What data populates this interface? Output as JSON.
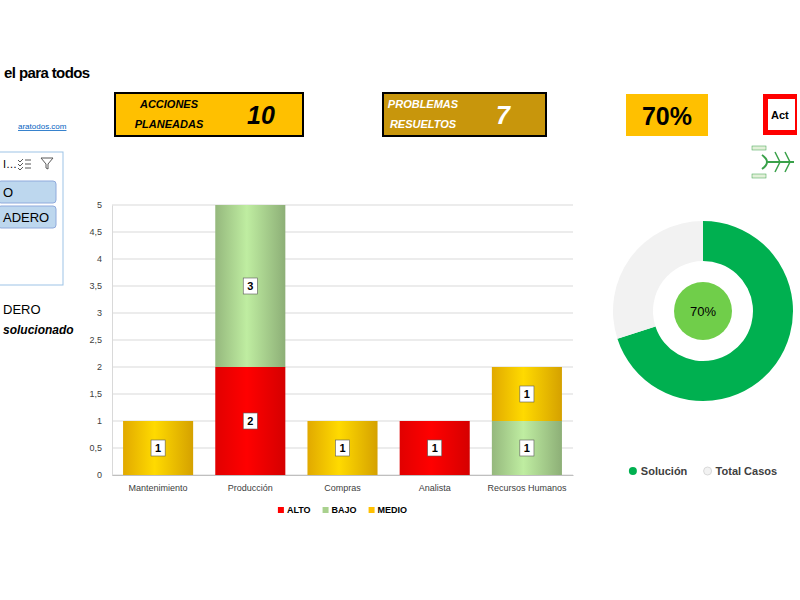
{
  "header": {
    "title": "el para todos",
    "link": "aratodos.com"
  },
  "slicer": {
    "title": "I…",
    "items": [
      "O",
      "ADERO"
    ]
  },
  "notes": [
    "DERO",
    "solucionado"
  ],
  "kpis": [
    {
      "label": [
        "ACCIONES",
        "PLANEADAS"
      ],
      "value": 10
    },
    {
      "label": [
        "PROBLEMAS",
        "RESUELTOS"
      ],
      "value": 7
    },
    {
      "value": 70,
      "value_label": "70%"
    }
  ],
  "button": {
    "label": "Act"
  },
  "chart_data": [
    {
      "type": "bar",
      "stacked": true,
      "data_labels": true,
      "grid": true,
      "legend": "bottom",
      "categories": [
        "Mantenimiento",
        "Producción",
        "Compras",
        "Analista",
        "Recursos Humanos"
      ],
      "series": [
        {
          "name": "ALTO",
          "color": "#ff0000",
          "values": [
            null,
            2,
            null,
            1,
            null
          ]
        },
        {
          "name": "BAJO",
          "color": "#a9d18e",
          "values": [
            null,
            3,
            null,
            null,
            1
          ]
        },
        {
          "name": "MEDIO",
          "color": "#ffc000",
          "values": [
            1,
            null,
            1,
            null,
            1
          ]
        }
      ],
      "ylim": [
        0,
        5
      ],
      "yticks": [
        0,
        {
          "value": 0.5,
          "label": "0,5"
        },
        1,
        {
          "value": 1.5,
          "label": "1,5"
        },
        2,
        {
          "value": 2.5,
          "label": "2,5"
        },
        3,
        {
          "value": 3.5,
          "label": "3,5"
        },
        4,
        {
          "value": 4.5,
          "label": "4,5"
        },
        5
      ]
    },
    {
      "type": "pie",
      "legend": "bottom",
      "categories": [
        "Solución",
        "Total Casos"
      ],
      "values": [
        70,
        30
      ],
      "colors": [
        "#00b050",
        "#f2f2f2"
      ],
      "annotation": "70%"
    }
  ]
}
